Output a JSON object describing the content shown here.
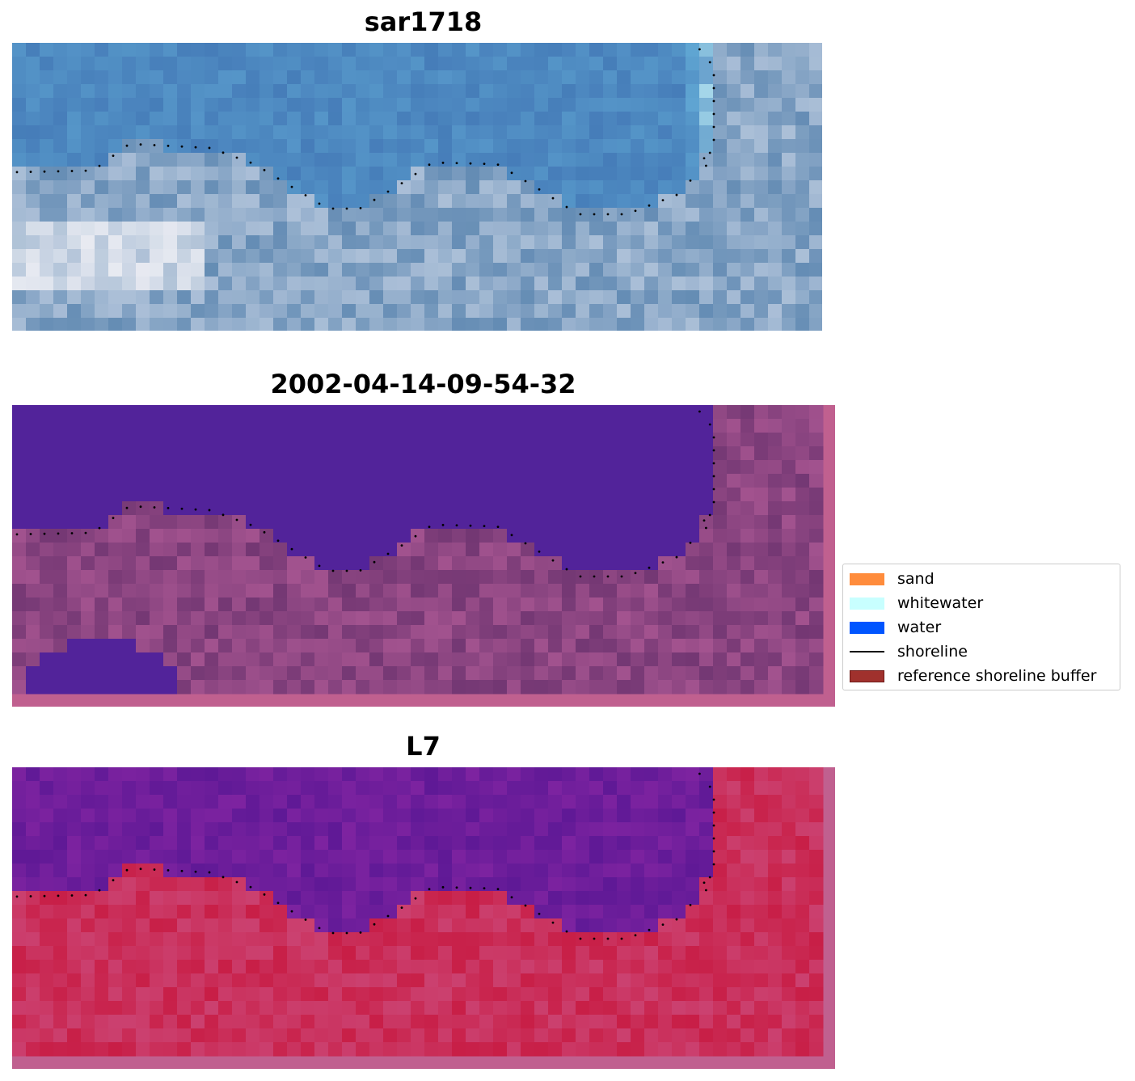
{
  "panels": [
    {
      "title": "sar1718",
      "kind": "rgb"
    },
    {
      "title": "2002-04-14-09-54-32",
      "kind": "classification"
    },
    {
      "title": "L7",
      "kind": "index"
    }
  ],
  "legend": {
    "items": [
      {
        "label": "sand",
        "color": "#ff8c3c",
        "type": "patch"
      },
      {
        "label": "whitewater",
        "color": "#c8ffff",
        "type": "patch"
      },
      {
        "label": "water",
        "color": "#0055ff",
        "type": "patch"
      },
      {
        "label": "shoreline",
        "color": "#000000",
        "type": "line"
      },
      {
        "label": "reference shoreline buffer",
        "color": "#a0312d",
        "type": "patch"
      }
    ]
  },
  "colors": {
    "water_class": "#52239a",
    "land_class": "#7a3c78",
    "buffer_pink": "#c0608f",
    "rgb_water": "#4a82c0",
    "index_water": "#6a1a9a",
    "index_land": "#c8244c"
  }
}
